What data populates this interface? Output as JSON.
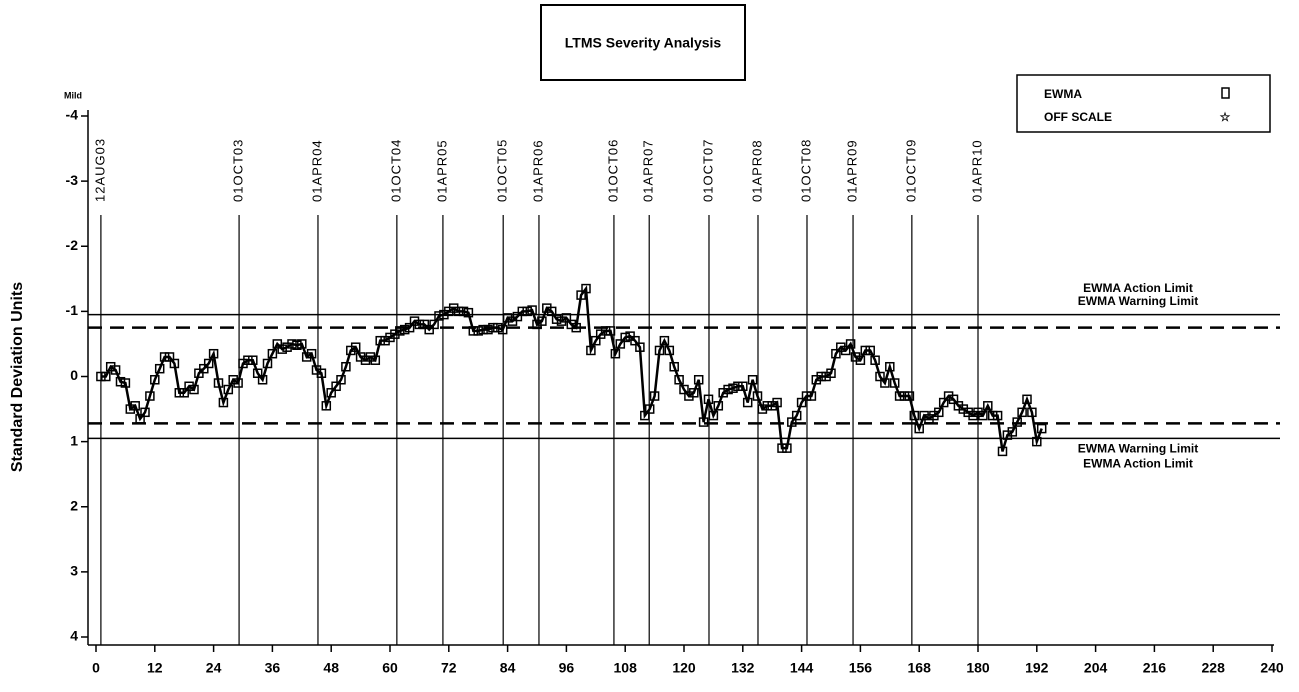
{
  "chart_data": {
    "type": "line",
    "title": "LTMS Severity Analysis",
    "y_label": "Standard Deviation Units",
    "y_top_note": "Mild",
    "y_inverted": true,
    "xlim": [
      0,
      240
    ],
    "xticks": [
      0,
      12,
      24,
      36,
      48,
      60,
      72,
      84,
      96,
      108,
      120,
      132,
      144,
      156,
      168,
      180,
      192,
      204,
      216,
      228,
      240
    ],
    "ylim": [
      -4,
      4
    ],
    "yticks": [
      -4,
      -3,
      -2,
      -1,
      0,
      1,
      2,
      3,
      4
    ],
    "legend": {
      "position": "top-right",
      "off_scale": "OFF SCALE"
    },
    "reference_lines": [
      {
        "x": 1,
        "label": "12AUG03"
      },
      {
        "x": 29.2,
        "label": "01OCT03"
      },
      {
        "x": 45.3,
        "label": "01APR04"
      },
      {
        "x": 61.4,
        "label": "01OCT04"
      },
      {
        "x": 70.8,
        "label": "01APR05"
      },
      {
        "x": 83.1,
        "label": "01OCT05"
      },
      {
        "x": 90.4,
        "label": "01APR06"
      },
      {
        "x": 105.7,
        "label": "01OCT06"
      },
      {
        "x": 112.9,
        "label": "01APR07"
      },
      {
        "x": 125.1,
        "label": "01OCT07"
      },
      {
        "x": 135.1,
        "label": "01APR08"
      },
      {
        "x": 145.1,
        "label": "01OCT08"
      },
      {
        "x": 154.5,
        "label": "01APR09"
      },
      {
        "x": 166.5,
        "label": "01OCT09"
      },
      {
        "x": 180,
        "label": "01APR10"
      }
    ],
    "limits": [
      {
        "y": -0.95,
        "label": "EWMA Action Limit",
        "style": "solid"
      },
      {
        "y": -0.75,
        "label": "EWMA Warning Limit",
        "style": "dashed"
      },
      {
        "y": 0.72,
        "label": "EWMA Warning Limit",
        "style": "dashed"
      },
      {
        "y": 0.95,
        "label": "EWMA Action Limit",
        "style": "solid"
      }
    ],
    "series": [
      {
        "name": "EWMA",
        "color": "#000000",
        "x": [
          1,
          2,
          3,
          4,
          5,
          6,
          7,
          8,
          9,
          10,
          11,
          12,
          13,
          14,
          15,
          16,
          17,
          18,
          19,
          20,
          21,
          22,
          23,
          24,
          25,
          26,
          27,
          28,
          29,
          30,
          31,
          32,
          33,
          34,
          35,
          36,
          37,
          38,
          39,
          40,
          41,
          42,
          43,
          44,
          45,
          46,
          47,
          48,
          49,
          50,
          51,
          52,
          53,
          54,
          55,
          56,
          57,
          58,
          59,
          60,
          61,
          62,
          63,
          64,
          65,
          66,
          67,
          68,
          69,
          70,
          71,
          72,
          73,
          74,
          75,
          76,
          77,
          78,
          79,
          80,
          81,
          82,
          83,
          84,
          85,
          86,
          87,
          88,
          89,
          90,
          91,
          92,
          93,
          94,
          95,
          96,
          97,
          98,
          99,
          100,
          101,
          102,
          103,
          104,
          105,
          106,
          107,
          108,
          109,
          110,
          111,
          112,
          113,
          114,
          115,
          116,
          117,
          118,
          119,
          120,
          121,
          122,
          123,
          124,
          125,
          126,
          127,
          128,
          129,
          130,
          131,
          132,
          133,
          134,
          135,
          136,
          137,
          138,
          139,
          140,
          141,
          142,
          143,
          144,
          145,
          146,
          147,
          148,
          149,
          150,
          151,
          152,
          153,
          154,
          155,
          156,
          157,
          158,
          159,
          160,
          161,
          162,
          163,
          164,
          165,
          166,
          167,
          168,
          169,
          170,
          171,
          172,
          173,
          174,
          175,
          176,
          177,
          178,
          179,
          180,
          181,
          182,
          183,
          184,
          185,
          186,
          187,
          188,
          189,
          190,
          191,
          192,
          193
        ],
        "values": [
          0,
          0,
          -0.15,
          -0.1,
          0.08,
          0.1,
          0.5,
          0.45,
          0.65,
          0.55,
          0.3,
          0.05,
          -0.12,
          -0.3,
          -0.3,
          -0.2,
          0.25,
          0.25,
          0.15,
          0.2,
          -0.05,
          -0.12,
          -0.2,
          -0.35,
          0.1,
          0.4,
          0.2,
          0.05,
          0.1,
          -0.2,
          -0.25,
          -0.25,
          -0.05,
          0.05,
          -0.2,
          -0.35,
          -0.5,
          -0.42,
          -0.45,
          -0.5,
          -0.48,
          -0.5,
          -0.3,
          -0.35,
          -0.1,
          -0.05,
          0.45,
          0.25,
          0.15,
          0.05,
          -0.15,
          -0.4,
          -0.45,
          -0.3,
          -0.25,
          -0.3,
          -0.25,
          -0.55,
          -0.55,
          -0.6,
          -0.65,
          -0.7,
          -0.72,
          -0.75,
          -0.85,
          -0.8,
          -0.8,
          -0.72,
          -0.8,
          -0.93,
          -0.95,
          -1.0,
          -1.05,
          -1.0,
          -1.0,
          -0.98,
          -0.7,
          -0.7,
          -0.72,
          -0.72,
          -0.75,
          -0.75,
          -0.72,
          -0.9,
          -0.85,
          -0.92,
          -1.0,
          -1.0,
          -1.02,
          -0.8,
          -0.85,
          -1.05,
          -1.0,
          -0.88,
          -0.85,
          -0.9,
          -0.8,
          -0.75,
          -1.25,
          -1.35,
          -0.4,
          -0.55,
          -0.65,
          -0.7,
          -0.7,
          -0.35,
          -0.5,
          -0.6,
          -0.62,
          -0.55,
          -0.45,
          0.6,
          0.5,
          0.3,
          -0.4,
          -0.55,
          -0.4,
          -0.15,
          0.05,
          0.2,
          0.3,
          0.25,
          0.05,
          0.7,
          0.35,
          0.6,
          0.45,
          0.25,
          0.2,
          0.18,
          0.15,
          0.15,
          0.4,
          0.05,
          0.3,
          0.5,
          0.45,
          0.45,
          0.4,
          1.1,
          1.1,
          0.7,
          0.6,
          0.4,
          0.3,
          0.3,
          0.05,
          0,
          0,
          -0.05,
          -0.35,
          -0.45,
          -0.4,
          -0.5,
          -0.3,
          -0.25,
          -0.4,
          -0.4,
          -0.25,
          0,
          0.1,
          -0.15,
          0.1,
          0.3,
          0.3,
          0.3,
          0.6,
          0.8,
          0.6,
          0.65,
          0.6,
          0.55,
          0.4,
          0.3,
          0.35,
          0.45,
          0.5,
          0.55,
          0.6,
          0.55,
          0.6,
          0.45,
          0.6,
          0.6,
          1.15,
          0.9,
          0.85,
          0.7,
          0.55,
          0.35,
          0.55,
          1.0,
          0.8
        ]
      }
    ]
  }
}
